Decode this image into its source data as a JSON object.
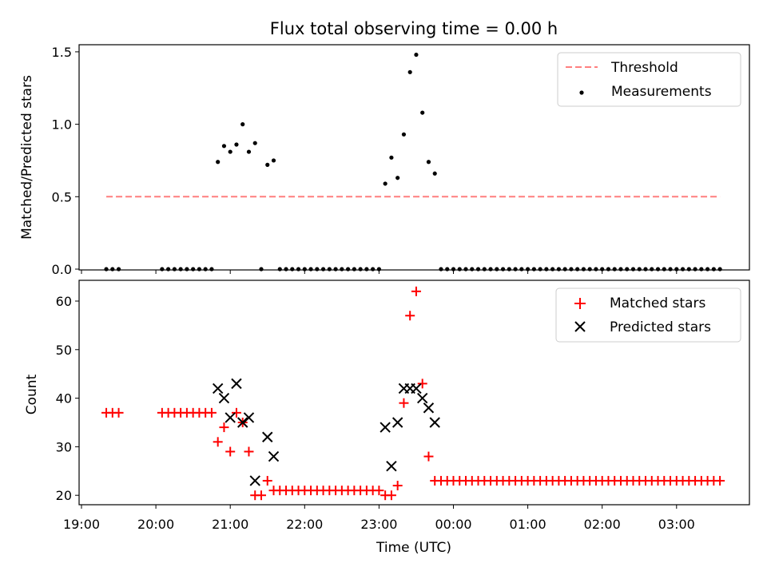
{
  "chart_data": [
    {
      "type": "scatter",
      "title": "Flux total observing time = 0.00 h",
      "ylabel": "Matched/Predicted stars",
      "xlabel": "",
      "xlim": [
        "19:00",
        "04:00"
      ],
      "ylim": [
        0,
        1.55
      ],
      "yticks": [
        "0.0",
        "0.5",
        "1.0",
        "1.5"
      ],
      "legend": {
        "placement": "upper right",
        "entries": [
          "Threshold",
          "Measurements"
        ]
      },
      "threshold": {
        "name": "Threshold",
        "value": 0.5,
        "x_start": "19:20",
        "x_end": "03:35",
        "color": "#ff7f7f",
        "style": "dashed"
      },
      "series": [
        {
          "name": "Measurements",
          "marker": "dot",
          "color": "#000000",
          "points": [
            [
              "19:20",
              0
            ],
            [
              "19:25",
              0
            ],
            [
              "19:30",
              0
            ],
            [
              "20:05",
              0
            ],
            [
              "20:10",
              0
            ],
            [
              "20:15",
              0
            ],
            [
              "20:20",
              0
            ],
            [
              "20:25",
              0
            ],
            [
              "20:30",
              0
            ],
            [
              "20:35",
              0
            ],
            [
              "20:40",
              0
            ],
            [
              "20:45",
              0
            ],
            [
              "20:50",
              0.74
            ],
            [
              "20:55",
              0.85
            ],
            [
              "21:00",
              0.81
            ],
            [
              "21:05",
              0.86
            ],
            [
              "21:10",
              1.0
            ],
            [
              "21:15",
              0.81
            ],
            [
              "21:20",
              0.87
            ],
            [
              "21:25",
              0
            ],
            [
              "21:30",
              0.72
            ],
            [
              "21:35",
              0.75
            ],
            [
              "21:40",
              0
            ],
            [
              "21:45",
              0
            ],
            [
              "21:50",
              0
            ],
            [
              "21:55",
              0
            ],
            [
              "22:00",
              0
            ],
            [
              "22:05",
              0
            ],
            [
              "22:10",
              0
            ],
            [
              "22:15",
              0
            ],
            [
              "22:20",
              0
            ],
            [
              "22:25",
              0
            ],
            [
              "22:30",
              0
            ],
            [
              "22:35",
              0
            ],
            [
              "22:40",
              0
            ],
            [
              "22:45",
              0
            ],
            [
              "22:50",
              0
            ],
            [
              "22:55",
              0
            ],
            [
              "23:00",
              0
            ],
            [
              "23:05",
              0.59
            ],
            [
              "23:10",
              0.77
            ],
            [
              "23:15",
              0.63
            ],
            [
              "23:20",
              0.93
            ],
            [
              "23:25",
              1.36
            ],
            [
              "23:30",
              1.48
            ],
            [
              "23:35",
              1.08
            ],
            [
              "23:40",
              0.74
            ],
            [
              "23:45",
              0.66
            ],
            [
              "23:50",
              0
            ],
            [
              "23:55",
              0
            ],
            [
              "00:00",
              0
            ],
            [
              "00:05",
              0
            ],
            [
              "00:10",
              0
            ],
            [
              "00:15",
              0
            ],
            [
              "00:20",
              0
            ],
            [
              "00:25",
              0
            ],
            [
              "00:30",
              0
            ],
            [
              "00:35",
              0
            ],
            [
              "00:40",
              0
            ],
            [
              "00:45",
              0
            ],
            [
              "00:50",
              0
            ],
            [
              "00:55",
              0
            ],
            [
              "01:00",
              0
            ],
            [
              "01:05",
              0
            ],
            [
              "01:10",
              0
            ],
            [
              "01:15",
              0
            ],
            [
              "01:20",
              0
            ],
            [
              "01:25",
              0
            ],
            [
              "01:30",
              0
            ],
            [
              "01:35",
              0
            ],
            [
              "01:40",
              0
            ],
            [
              "01:45",
              0
            ],
            [
              "01:50",
              0
            ],
            [
              "01:55",
              0
            ],
            [
              "02:00",
              0
            ],
            [
              "02:05",
              0
            ],
            [
              "02:10",
              0
            ],
            [
              "02:15",
              0
            ],
            [
              "02:20",
              0
            ],
            [
              "02:25",
              0
            ],
            [
              "02:30",
              0
            ],
            [
              "02:35",
              0
            ],
            [
              "02:40",
              0
            ],
            [
              "02:45",
              0
            ],
            [
              "02:50",
              0
            ],
            [
              "02:55",
              0
            ],
            [
              "03:00",
              0
            ],
            [
              "03:05",
              0
            ],
            [
              "03:10",
              0
            ],
            [
              "03:15",
              0
            ],
            [
              "03:20",
              0
            ],
            [
              "03:25",
              0
            ],
            [
              "03:30",
              0
            ],
            [
              "03:35",
              0
            ]
          ]
        }
      ]
    },
    {
      "type": "scatter",
      "title": "",
      "ylabel": "Count",
      "xlabel": "Time (UTC)",
      "xlim": [
        "19:00",
        "04:00"
      ],
      "ylim": [
        18,
        64
      ],
      "yticks": [
        "20",
        "30",
        "40",
        "50",
        "60"
      ],
      "xticks": [
        "19:00",
        "20:00",
        "21:00",
        "22:00",
        "23:00",
        "00:00",
        "01:00",
        "02:00",
        "03:00"
      ],
      "legend": {
        "placement": "upper right",
        "entries": [
          "Matched stars",
          "Predicted stars"
        ]
      },
      "series": [
        {
          "name": "Matched stars",
          "marker": "plus",
          "color": "#ff0000",
          "points": [
            [
              "19:20",
              37
            ],
            [
              "19:25",
              37
            ],
            [
              "19:30",
              37
            ],
            [
              "20:05",
              37
            ],
            [
              "20:10",
              37
            ],
            [
              "20:15",
              37
            ],
            [
              "20:20",
              37
            ],
            [
              "20:25",
              37
            ],
            [
              "20:30",
              37
            ],
            [
              "20:35",
              37
            ],
            [
              "20:40",
              37
            ],
            [
              "20:45",
              37
            ],
            [
              "20:50",
              31
            ],
            [
              "20:55",
              34
            ],
            [
              "21:00",
              29
            ],
            [
              "21:05",
              37
            ],
            [
              "21:10",
              35
            ],
            [
              "21:15",
              29
            ],
            [
              "21:20",
              20
            ],
            [
              "21:25",
              20
            ],
            [
              "21:30",
              23
            ],
            [
              "21:35",
              21
            ],
            [
              "21:40",
              21
            ],
            [
              "21:45",
              21
            ],
            [
              "21:50",
              21
            ],
            [
              "21:55",
              21
            ],
            [
              "22:00",
              21
            ],
            [
              "22:05",
              21
            ],
            [
              "22:10",
              21
            ],
            [
              "22:15",
              21
            ],
            [
              "22:20",
              21
            ],
            [
              "22:25",
              21
            ],
            [
              "22:30",
              21
            ],
            [
              "22:35",
              21
            ],
            [
              "22:40",
              21
            ],
            [
              "22:45",
              21
            ],
            [
              "22:50",
              21
            ],
            [
              "22:55",
              21
            ],
            [
              "23:00",
              21
            ],
            [
              "23:05",
              20
            ],
            [
              "23:10",
              20
            ],
            [
              "23:15",
              22
            ],
            [
              "23:20",
              39
            ],
            [
              "23:25",
              57
            ],
            [
              "23:30",
              62
            ],
            [
              "23:35",
              43
            ],
            [
              "23:40",
              28
            ],
            [
              "23:45",
              23
            ],
            [
              "23:50",
              23
            ],
            [
              "23:55",
              23
            ],
            [
              "00:00",
              23
            ],
            [
              "00:05",
              23
            ],
            [
              "00:10",
              23
            ],
            [
              "00:15",
              23
            ],
            [
              "00:20",
              23
            ],
            [
              "00:25",
              23
            ],
            [
              "00:30",
              23
            ],
            [
              "00:35",
              23
            ],
            [
              "00:40",
              23
            ],
            [
              "00:45",
              23
            ],
            [
              "00:50",
              23
            ],
            [
              "00:55",
              23
            ],
            [
              "01:00",
              23
            ],
            [
              "01:05",
              23
            ],
            [
              "01:10",
              23
            ],
            [
              "01:15",
              23
            ],
            [
              "01:20",
              23
            ],
            [
              "01:25",
              23
            ],
            [
              "01:30",
              23
            ],
            [
              "01:35",
              23
            ],
            [
              "01:40",
              23
            ],
            [
              "01:45",
              23
            ],
            [
              "01:50",
              23
            ],
            [
              "01:55",
              23
            ],
            [
              "02:00",
              23
            ],
            [
              "02:05",
              23
            ],
            [
              "02:10",
              23
            ],
            [
              "02:15",
              23
            ],
            [
              "02:20",
              23
            ],
            [
              "02:25",
              23
            ],
            [
              "02:30",
              23
            ],
            [
              "02:35",
              23
            ],
            [
              "02:40",
              23
            ],
            [
              "02:45",
              23
            ],
            [
              "02:50",
              23
            ],
            [
              "02:55",
              23
            ],
            [
              "03:00",
              23
            ],
            [
              "03:05",
              23
            ],
            [
              "03:10",
              23
            ],
            [
              "03:15",
              23
            ],
            [
              "03:20",
              23
            ],
            [
              "03:25",
              23
            ],
            [
              "03:30",
              23
            ],
            [
              "03:35",
              23
            ]
          ]
        },
        {
          "name": "Predicted stars",
          "marker": "x",
          "color": "#000000",
          "points": [
            [
              "20:50",
              42
            ],
            [
              "20:55",
              40
            ],
            [
              "21:00",
              36
            ],
            [
              "21:05",
              43
            ],
            [
              "21:10",
              35
            ],
            [
              "21:15",
              36
            ],
            [
              "21:20",
              23
            ],
            [
              "21:30",
              32
            ],
            [
              "21:35",
              28
            ],
            [
              "23:05",
              34
            ],
            [
              "23:10",
              26
            ],
            [
              "23:15",
              35
            ],
            [
              "23:20",
              42
            ],
            [
              "23:25",
              42
            ],
            [
              "23:30",
              42
            ],
            [
              "23:35",
              40
            ],
            [
              "23:40",
              38
            ],
            [
              "23:45",
              35
            ]
          ]
        }
      ]
    }
  ]
}
